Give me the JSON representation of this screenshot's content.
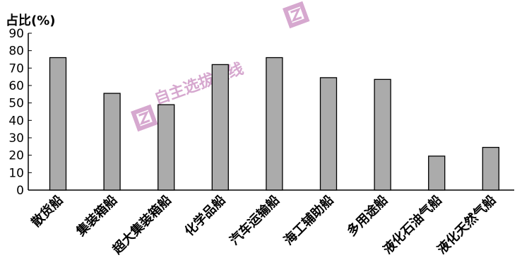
{
  "chart_data": {
    "type": "bar",
    "ylabel": "占比(%)",
    "xlabel": "",
    "title": "",
    "ylim": [
      0,
      90
    ],
    "yticks": [
      0,
      10,
      20,
      30,
      40,
      50,
      60,
      70,
      80,
      90
    ],
    "categories": [
      "散货船",
      "集装箱船",
      "超大集装箱船",
      "化学品船",
      "汽车运输船",
      "海工辅助船",
      "多用途船",
      "液化石油气船",
      "液化天然气船"
    ],
    "values": [
      76,
      55.5,
      49,
      72,
      76,
      64.5,
      63.5,
      19.5,
      24.5
    ],
    "grid": false,
    "legend": "none",
    "bar_color": "#ababab",
    "bar_edge_color": "#000000"
  },
  "watermark": {
    "text": "自主选拔在线",
    "color": "#c98bbf"
  }
}
